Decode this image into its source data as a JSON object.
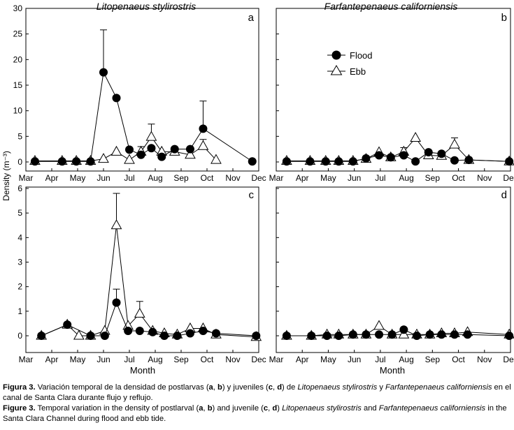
{
  "figure": {
    "y_axis_label": "Density (m⁻³)",
    "x_axis_label": "Month",
    "legend": {
      "flood": "Flood",
      "ebb": "Ebb"
    }
  },
  "chart_data": [
    {
      "id": "a",
      "panel_label": "a",
      "title": "Litopenaeus stylirostris",
      "type": "line",
      "ylim": [
        0,
        30
      ],
      "yticks": [
        0,
        5,
        10,
        15,
        20,
        25,
        30
      ],
      "xlim": [
        3,
        12
      ],
      "xticks": [
        3,
        4,
        5,
        6,
        7,
        8,
        9,
        10,
        11,
        12
      ],
      "xtick_labels": [
        "Mar",
        "Apr",
        "May",
        "Jun",
        "Jul",
        "Aug",
        "Sep",
        "Oct",
        "Nov",
        "Dec"
      ],
      "series": [
        {
          "name": "Flood",
          "marker": "filled-circle",
          "x": [
            3.35,
            4.4,
            4.95,
            5.5,
            6.0,
            6.5,
            7.0,
            7.45,
            7.85,
            8.25,
            8.75,
            9.35,
            9.85,
            11.75
          ],
          "values": [
            0.1,
            0.1,
            0.1,
            0.1,
            17.5,
            12.5,
            2.4,
            1.4,
            2.7,
            1.0,
            2.5,
            2.5,
            6.5,
            0.1
          ],
          "err": [
            0,
            0,
            0,
            0,
            8.3,
            0,
            0,
            0,
            0,
            0,
            0,
            0,
            5.4,
            0
          ]
        },
        {
          "name": "Ebb",
          "marker": "open-triangle",
          "x": [
            3.35,
            4.4,
            4.95,
            5.5,
            6.0,
            6.5,
            7.0,
            7.45,
            7.85,
            8.25,
            8.75,
            9.35,
            9.85,
            10.35
          ],
          "values": [
            0.2,
            0.2,
            0.2,
            0.2,
            0.6,
            2.0,
            0.4,
            2.0,
            4.9,
            2.0,
            2.0,
            1.4,
            3.1,
            0.4
          ],
          "err": [
            0,
            0,
            0,
            0,
            0,
            0,
            0,
            1.0,
            2.5,
            0,
            0,
            0,
            1.3,
            0
          ]
        }
      ]
    },
    {
      "id": "b",
      "panel_label": "b",
      "title": "Farfantepenaeus californiensis",
      "type": "line",
      "ylim": [
        0,
        30
      ],
      "yticks": [
        0,
        5,
        10,
        15,
        20,
        25,
        30
      ],
      "xlim": [
        3,
        12
      ],
      "xticks": [
        3,
        4,
        5,
        6,
        7,
        8,
        9,
        10,
        11,
        12
      ],
      "xtick_labels": [
        "Mar",
        "Apr",
        "May",
        "Jun",
        "Jul",
        "Aug",
        "Sep",
        "Oct",
        "Nov",
        "Dec"
      ],
      "series": [
        {
          "name": "Flood",
          "marker": "filled-circle",
          "x": [
            3.4,
            4.3,
            4.9,
            5.4,
            5.95,
            6.45,
            6.95,
            7.4,
            7.9,
            8.35,
            8.85,
            9.35,
            9.85,
            10.4,
            11.95
          ],
          "values": [
            0.1,
            0.1,
            0.1,
            0.1,
            0.1,
            0.7,
            1.3,
            0.9,
            1.3,
            0.1,
            1.9,
            1.6,
            0.3,
            0.4,
            0.1
          ],
          "err": [
            0,
            0,
            0,
            0,
            0,
            0,
            0,
            0,
            0,
            0,
            0,
            0,
            0,
            0,
            0
          ]
        },
        {
          "name": "Ebb",
          "marker": "open-triangle",
          "x": [
            3.4,
            4.3,
            4.9,
            5.4,
            5.95,
            6.45,
            6.95,
            7.4,
            7.9,
            8.35,
            8.85,
            9.35,
            9.85,
            10.4,
            11.95
          ],
          "values": [
            0.2,
            0.2,
            0.2,
            0.2,
            0.2,
            0.6,
            1.9,
            0.9,
            2.0,
            4.7,
            1.3,
            1.2,
            3.4,
            0.4,
            0.1
          ],
          "err": [
            0,
            0,
            0,
            0,
            0,
            0,
            0,
            0,
            0.8,
            0,
            0,
            0,
            1.3,
            0,
            0
          ]
        }
      ]
    },
    {
      "id": "c",
      "panel_label": "c",
      "title": "",
      "type": "line",
      "ylim": [
        0,
        6
      ],
      "yticks": [
        0,
        1,
        2,
        3,
        4,
        5,
        6
      ],
      "xlim": [
        3,
        12
      ],
      "xticks": [
        3,
        4,
        5,
        6,
        7,
        8,
        9,
        10,
        11,
        12
      ],
      "xtick_labels": [
        "Mar",
        "Apr",
        "May",
        "Jun",
        "Jul",
        "Aug",
        "Sep",
        "Oct",
        "Nov",
        "Dec"
      ],
      "series": [
        {
          "name": "Flood",
          "marker": "filled-circle",
          "x": [
            3.6,
            4.6,
            5.5,
            6.05,
            6.5,
            6.95,
            7.4,
            7.9,
            8.35,
            8.85,
            9.35,
            9.85,
            10.35,
            11.9
          ],
          "values": [
            0.0,
            0.45,
            0.0,
            0.0,
            1.35,
            0.2,
            0.2,
            0.15,
            0.0,
            0.0,
            0.1,
            0.2,
            0.1,
            0.0
          ],
          "err": [
            0,
            0,
            0,
            0,
            0.55,
            0,
            0,
            0,
            0,
            0,
            0,
            0,
            0,
            0
          ]
        },
        {
          "name": "Ebb",
          "marker": "open-triangle",
          "x": [
            3.6,
            4.6,
            5.05,
            5.5,
            6.05,
            6.5,
            6.95,
            7.4,
            7.9,
            8.35,
            8.85,
            9.35,
            9.85,
            10.35,
            11.9
          ],
          "values": [
            0.0,
            0.45,
            0.0,
            0.0,
            0.2,
            4.5,
            0.4,
            0.9,
            0.2,
            0.1,
            0.05,
            0.3,
            0.3,
            0.05,
            -0.05
          ],
          "err": [
            0,
            0,
            0,
            0,
            0,
            1.3,
            0,
            0.5,
            0,
            0,
            0,
            0,
            0,
            0,
            0
          ]
        }
      ]
    },
    {
      "id": "d",
      "panel_label": "d",
      "title": "",
      "type": "line",
      "ylim": [
        0,
        6
      ],
      "yticks": [
        0,
        1,
        2,
        3,
        4,
        5,
        6
      ],
      "xlim": [
        3,
        12
      ],
      "xticks": [
        3,
        4,
        5,
        6,
        7,
        8,
        9,
        10,
        11,
        12
      ],
      "xtick_labels": [
        "Mar",
        "Apr",
        "May",
        "Jun",
        "Jul",
        "Aug",
        "Sep",
        "Oct",
        "Nov",
        "Dec"
      ],
      "series": [
        {
          "name": "Flood",
          "marker": "filled-circle",
          "x": [
            3.4,
            4.35,
            4.95,
            5.4,
            5.95,
            6.45,
            6.95,
            7.45,
            7.9,
            8.4,
            8.9,
            9.35,
            9.85,
            10.35,
            11.95
          ],
          "values": [
            0.0,
            0.0,
            0.0,
            0.0,
            0.05,
            0.05,
            0.05,
            0.05,
            0.25,
            0.0,
            0.05,
            0.05,
            0.05,
            0.05,
            0.0
          ],
          "err": [
            0,
            0,
            0,
            0,
            0,
            0,
            0,
            0,
            0,
            0,
            0,
            0,
            0,
            0,
            0
          ]
        },
        {
          "name": "Ebb",
          "marker": "open-triangle",
          "x": [
            3.4,
            4.35,
            4.95,
            5.4,
            5.95,
            6.45,
            6.95,
            7.45,
            7.9,
            8.4,
            8.9,
            9.35,
            9.85,
            10.35,
            11.95
          ],
          "values": [
            0.0,
            0.0,
            0.05,
            0.05,
            0.05,
            0.05,
            0.4,
            0.05,
            0.05,
            0.05,
            0.05,
            0.1,
            0.1,
            0.15,
            0.05
          ],
          "err": [
            0,
            0,
            0,
            0,
            0,
            0,
            0,
            0,
            0,
            0,
            0,
            0,
            0,
            0,
            0
          ]
        }
      ]
    }
  ],
  "caption": {
    "es_label": "Figura 3.",
    "es_p1": " Variación temporal de la densidad de postlarvas (",
    "es_a": "a",
    "es_comma1": ", ",
    "es_b": "b",
    "es_p2": ") y juveniles (",
    "es_c": "c",
    "es_comma2": ", ",
    "es_d": "d",
    "es_p3": ") de ",
    "es_sp1": "Litopenaeus stylirostris",
    "es_y": " y ",
    "es_sp2": "Farfantepenaeus californiensis",
    "es_p4": " en el canal de Santa Clara durante flujo y reflujo.",
    "en_label": "Figure 3.",
    "en_p1": " Temporal variation in the density of postlarval (",
    "en_a": "a",
    "en_comma1": ", ",
    "en_b": "b",
    "en_p2": ") and juvenile (",
    "en_c": "c",
    "en_comma2": ", ",
    "en_d": "d",
    "en_p3": ") ",
    "en_sp1": "Litopenaeus stylirostris",
    "en_and": " and ",
    "en_sp2": "Farfantepenaeus californiensis",
    "en_p4": " in the Santa Clara Channel during flood and ebb tide."
  }
}
